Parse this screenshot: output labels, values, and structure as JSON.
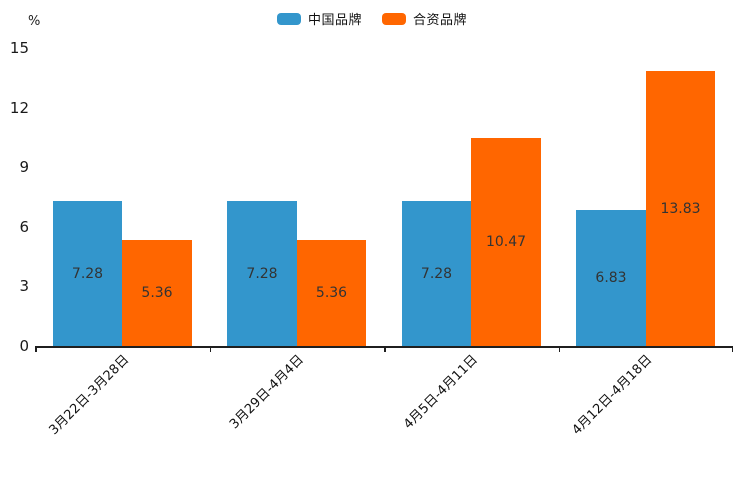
{
  "colors": {
    "china_brand": "#3396CC",
    "joint_brand": "#FF6600",
    "axis": "#1f1f1f",
    "bar_label_text": "#333333",
    "background": "#ffffff"
  },
  "chart_data": {
    "type": "bar",
    "title": "",
    "xlabel": "",
    "ylabel": "%",
    "categories": [
      "3月22日-3月28日",
      "3月29日-4月4日",
      "4月5日-4月11日",
      "4月12日-4月18日"
    ],
    "series": [
      {
        "name": "中国品牌",
        "color": "#3396CC",
        "values": [
          7.28,
          7.28,
          7.28,
          6.83
        ]
      },
      {
        "name": "合资品牌",
        "color": "#FF6600",
        "values": [
          5.36,
          5.36,
          10.47,
          13.83
        ]
      }
    ],
    "ylim": [
      0,
      15
    ],
    "yticks": [
      0,
      3,
      6,
      9,
      12,
      15
    ],
    "grid": false,
    "legend_position": "top-center",
    "value_labels": "inside-center",
    "value_label_format": "2-decimals",
    "xtick_rotation": 45
  }
}
